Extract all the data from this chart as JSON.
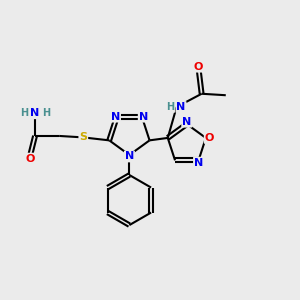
{
  "bg_color": "#ebebeb",
  "atom_colors": {
    "C": "#000000",
    "N": "#0000ee",
    "O": "#ee0000",
    "S": "#ccaa00",
    "H": "#4a9090"
  },
  "bond_color": "#000000",
  "bond_width": 1.5,
  "figsize": [
    3.0,
    3.0
  ],
  "dpi": 100
}
